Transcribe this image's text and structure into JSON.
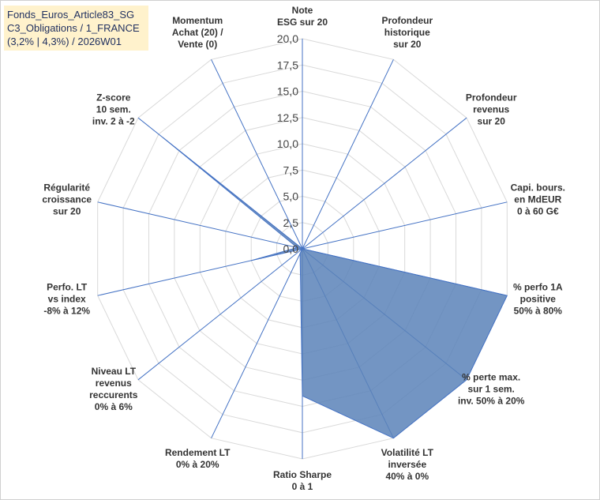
{
  "title": {
    "line1": "Fonds_Euros_Article83_SG",
    "line2": "C3_Obligations / 1_FRANCE",
    "line3": "(3,2% | 4,3%) / 2026W01"
  },
  "chart_data": {
    "type": "radar",
    "title": "Fonds_Euros_Article83_SG C3_Obligations / 1_FRANCE (3,2% | 4,3%) / 2026W01",
    "rlim": [
      0,
      20
    ],
    "ticks": [
      "0,0",
      "2,5",
      "5,0",
      "7,5",
      "10,0",
      "12,5",
      "15,0",
      "17,5",
      "20,0"
    ],
    "tick_values": [
      0,
      2.5,
      5,
      7.5,
      10,
      12.5,
      15,
      17.5,
      20
    ],
    "grid": true,
    "fill_color": "#5b82b8",
    "axes": [
      {
        "label": [
          "Note",
          "ESG sur 20"
        ],
        "value": 0
      },
      {
        "label": [
          "Profondeur",
          "historique",
          "sur 20"
        ],
        "value": 0
      },
      {
        "label": [
          "Profondeur",
          "revenus",
          "sur 20"
        ],
        "value": 0
      },
      {
        "label": [
          "Capi. bours.",
          "en MdEUR",
          "0 à 60 G€"
        ],
        "value": 0
      },
      {
        "label": [
          "% perfo 1A",
          "positive",
          "50% à 80%"
        ],
        "value": 20
      },
      {
        "label": [
          "% perte max.",
          "sur 1 sem.",
          "inv. 50% à 20%"
        ],
        "value": 20
      },
      {
        "label": [
          "Volatilité LT",
          "inversée",
          "40% à 0%"
        ],
        "value": 20
      },
      {
        "label": [
          "Ratio Sharpe",
          "0 à 1"
        ],
        "value": 14
      },
      {
        "label": [
          "Rendement LT",
          "0% à 20%"
        ],
        "value": 0.5
      },
      {
        "label": [
          "Niveau LT",
          "revenus",
          "reccurents",
          "0% à 6%"
        ],
        "value": 0
      },
      {
        "label": [
          "Perfo. LT",
          "vs index",
          "-8% à 12%"
        ],
        "value": 5
      },
      {
        "label": [
          "Régularité",
          "croissance",
          "sur 20"
        ],
        "value": 0.5
      },
      {
        "label": [
          "Z-score",
          "10 sem.",
          "inv. 2 à -2"
        ],
        "value": 17
      },
      {
        "label": [
          "Momentum",
          "Achat (20) /",
          "Vente (0)"
        ],
        "value": 0
      }
    ]
  }
}
